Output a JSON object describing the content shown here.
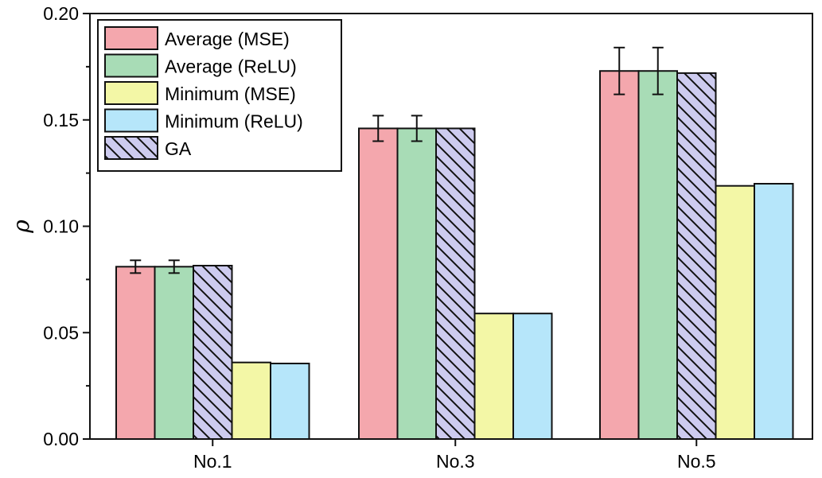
{
  "chart_data": {
    "type": "bar",
    "title": "",
    "xlabel": "",
    "ylabel": "ρ",
    "ylim": [
      0,
      0.2
    ],
    "yticks": [
      "0.00",
      "0.05",
      "0.10",
      "0.15",
      "0.20"
    ],
    "ytick_values": [
      0,
      0.05,
      0.1,
      0.15,
      0.2
    ],
    "categories": [
      "No.1",
      "No.3",
      "No.5"
    ],
    "legend_position": "top-left",
    "grid": false,
    "series": [
      {
        "name": "Average (MSE)",
        "color": "#f4a7ad",
        "values": [
          0.081,
          0.146,
          0.173
        ],
        "errors": [
          0.003,
          0.006,
          0.011
        ]
      },
      {
        "name": "Average (ReLU)",
        "color": "#a8dcb6",
        "values": [
          0.081,
          0.146,
          0.173
        ],
        "errors": [
          0.003,
          0.006,
          0.011
        ]
      },
      {
        "name": "GA",
        "color": "#cdcbef",
        "pattern": "hatch",
        "values": [
          0.0815,
          0.146,
          0.172
        ]
      },
      {
        "name": "Minimum (MSE)",
        "color": "#f3f7a6",
        "values": [
          0.036,
          0.059,
          0.119
        ]
      },
      {
        "name": "Minimum (ReLU)",
        "color": "#b6e6fa",
        "values": [
          0.0355,
          0.059,
          0.12
        ]
      }
    ],
    "legend_order": [
      "Average (MSE)",
      "Average (ReLU)",
      "Minimum (MSE)",
      "Minimum (ReLU)",
      "GA"
    ]
  }
}
